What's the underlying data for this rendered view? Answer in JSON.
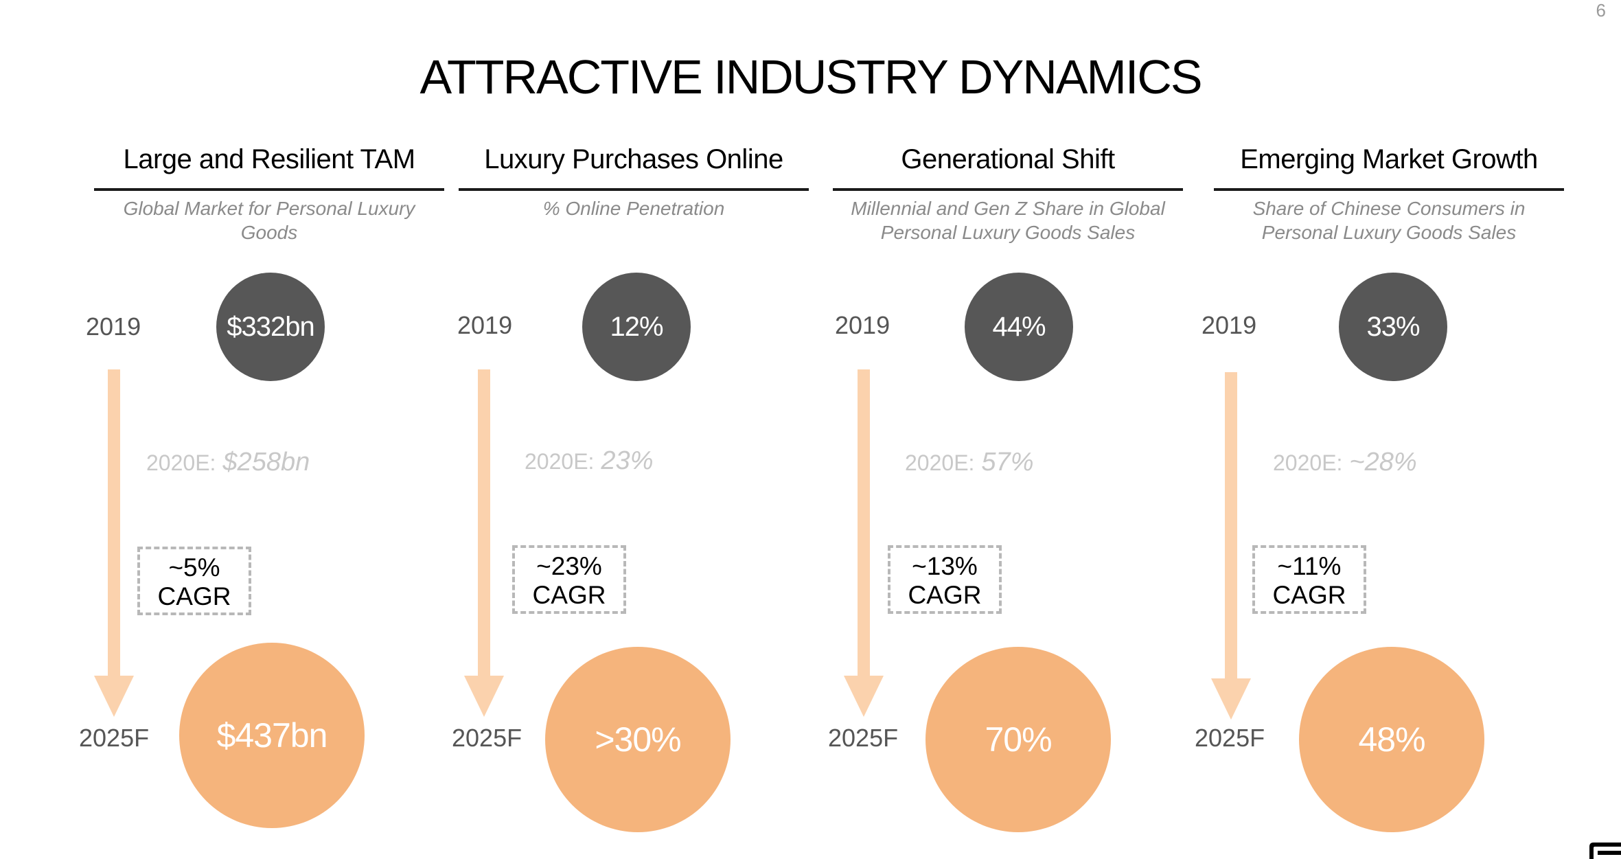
{
  "page_number": "6",
  "title": "ATTRACTIVE INDUSTRY DYNAMICS",
  "columns": [
    {
      "heading": "Large and Resilient TAM",
      "subtitle": "Global Market for Personal Luxury Goods",
      "year_start": "2019",
      "value_start": "$332bn",
      "estimate_label": "2020E:",
      "estimate_value": "$258bn",
      "cagr_value": "~5%",
      "cagr_label": "CAGR",
      "year_end": "2025F",
      "value_end": "$437bn"
    },
    {
      "heading": "Luxury Purchases Online",
      "subtitle": "% Online Penetration",
      "year_start": "2019",
      "value_start": "12%",
      "estimate_label": "2020E:",
      "estimate_value": "23%",
      "cagr_value": "~23%",
      "cagr_label": "CAGR",
      "year_end": "2025F",
      "value_end": ">30%"
    },
    {
      "heading": "Generational Shift",
      "subtitle": "Millennial and Gen Z Share in Global Personal Luxury Goods Sales",
      "year_start": "2019",
      "value_start": "44%",
      "estimate_label": "2020E:",
      "estimate_value": "57%",
      "cagr_value": "~13%",
      "cagr_label": "CAGR",
      "year_end": "2025F",
      "value_end": "70%"
    },
    {
      "heading": "Emerging Market Growth",
      "subtitle": "Share of Chinese Consumers in Personal Luxury Goods Sales",
      "year_start": "2019",
      "value_start": "33%",
      "estimate_label": "2020E:",
      "estimate_value": "~28%",
      "cagr_value": "~11%",
      "cagr_label": "CAGR",
      "year_end": "2025F",
      "value_end": "48%"
    }
  ],
  "colors": {
    "circle_2019": "#575757",
    "circle_2025": "#f5b47c",
    "arrow": "#fbd2ad",
    "estimate_text": "#c8c8c8",
    "subtitle_text": "#8a8a8a"
  },
  "icons": {
    "corner_logo": "brand-logo-icon",
    "timeline_arrow": "down-arrow-icon"
  }
}
